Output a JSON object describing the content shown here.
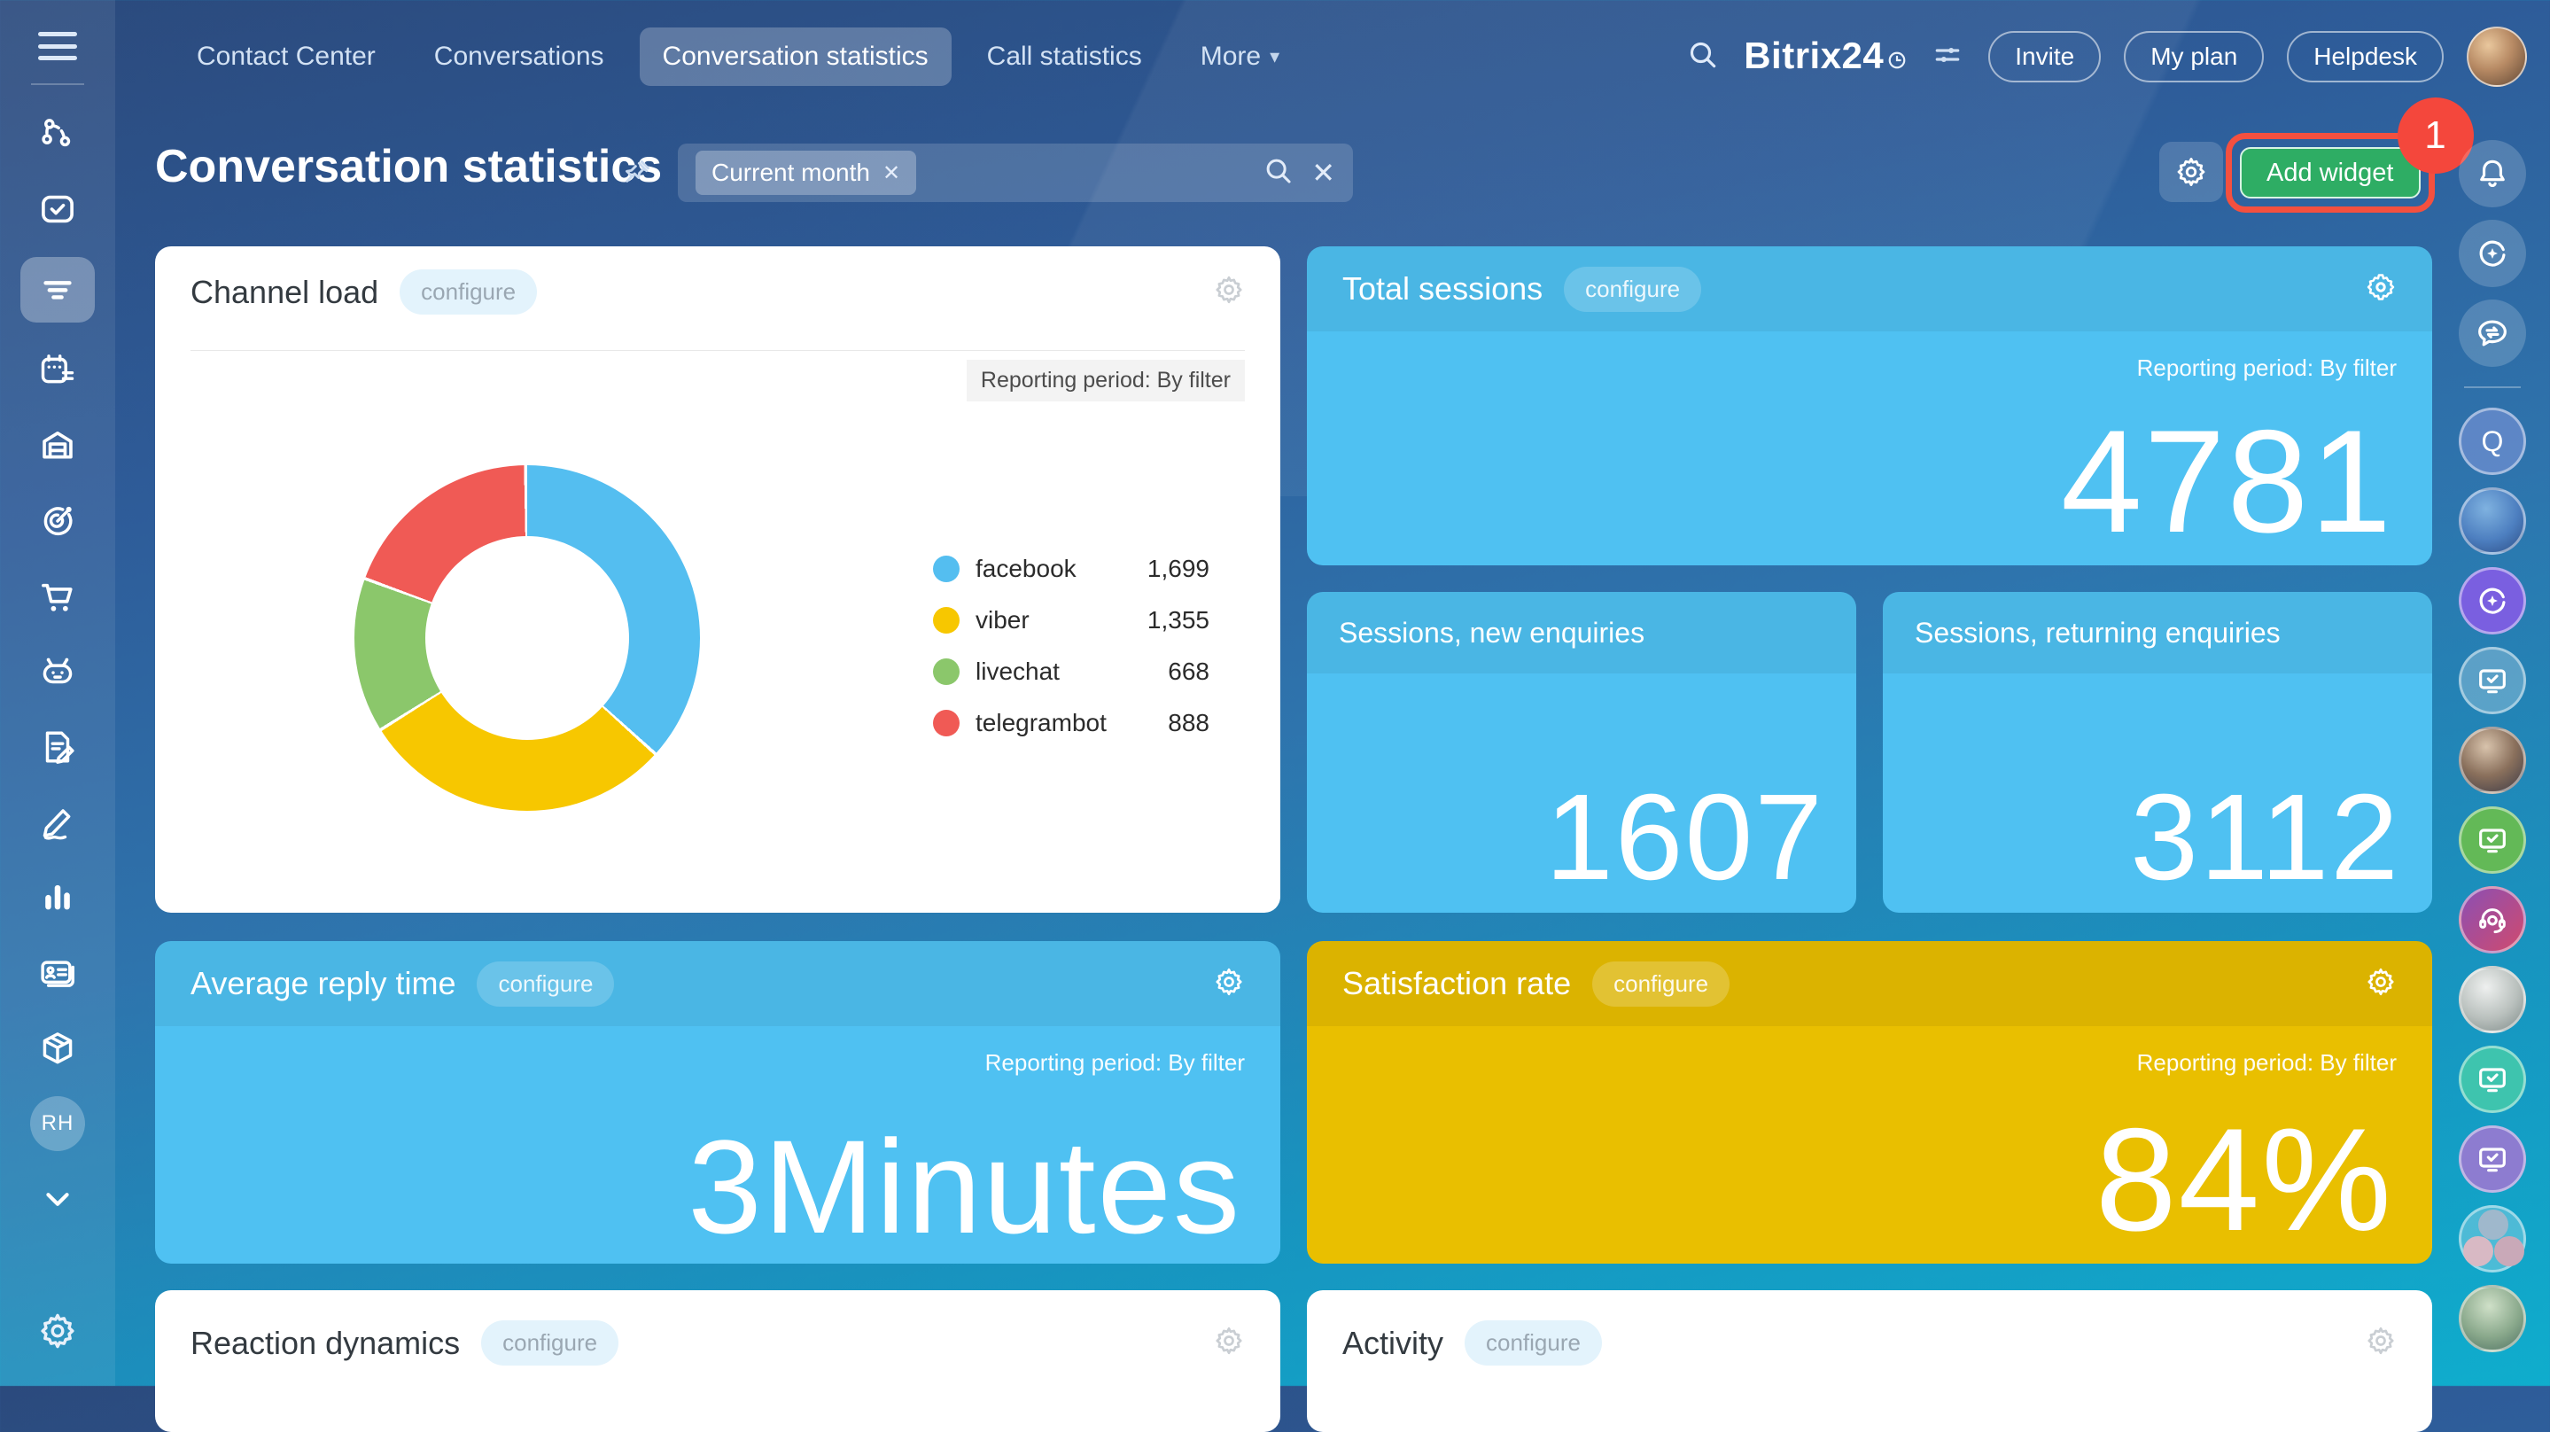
{
  "topnav": {
    "items": [
      {
        "label": "Contact Center"
      },
      {
        "label": "Conversations"
      },
      {
        "label": "Conversation statistics"
      },
      {
        "label": "Call statistics"
      },
      {
        "label": "More"
      }
    ],
    "brand": "Bitrix24",
    "actions": [
      {
        "label": "Invite"
      },
      {
        "label": "My plan"
      },
      {
        "label": "Helpdesk"
      }
    ]
  },
  "header": {
    "title": "Conversation statistics",
    "filter_chip": "Current month",
    "add_widget": "Add widget",
    "annotation_badge": "1"
  },
  "widgets": {
    "channel_load": {
      "title": "Channel load",
      "configure": "configure",
      "reporting": "Reporting period: By filter"
    },
    "total_sessions": {
      "title": "Total sessions",
      "configure": "configure",
      "reporting": "Reporting period: By filter",
      "value": "4781"
    },
    "sessions_new": {
      "title": "Sessions, new enquiries",
      "value": "1607"
    },
    "sessions_returning": {
      "title": "Sessions, returning enquiries",
      "value": "3112"
    },
    "average_reply": {
      "title": "Average reply time",
      "configure": "configure",
      "reporting": "Reporting period: By filter",
      "value": "3",
      "unit": "Minutes"
    },
    "satisfaction": {
      "title": "Satisfaction rate",
      "configure": "configure",
      "reporting": "Reporting period: By filter",
      "value": "84%"
    },
    "reaction_dynamics": {
      "title": "Reaction dynamics",
      "configure": "configure"
    },
    "activity": {
      "title": "Activity",
      "configure": "configure"
    }
  },
  "sidebar": {
    "profile_initials": "RH"
  },
  "rail": {
    "q_label": "Q"
  },
  "chart_data": {
    "type": "pie",
    "subtype": "donut",
    "title": "Channel load",
    "categories": [
      "facebook",
      "viber",
      "livechat",
      "telegrambot"
    ],
    "values": [
      1699,
      1355,
      668,
      888
    ],
    "display_values": [
      "1,699",
      "1,355",
      "668",
      "888"
    ],
    "colors": [
      "#54BEF0",
      "#F7C700",
      "#8BC76B",
      "#F05A55"
    ],
    "legend_position": "right"
  },
  "colors": {
    "add_widget_green": "#2EAD64",
    "annotation_red": "#F4473C",
    "widget_blue": "#4FC1F2",
    "widget_gold": "#E9BF00",
    "background_top": "#2B4A7D",
    "background_bottom": "#0FADCD"
  }
}
